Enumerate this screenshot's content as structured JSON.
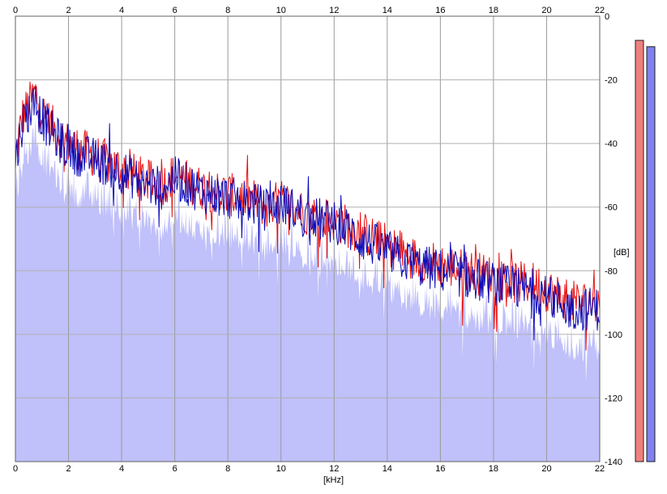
{
  "chart_data": {
    "type": "area",
    "xlabel": "[kHz]",
    "ylabel": "[dB]",
    "xlim": [
      0,
      22
    ],
    "ylim": [
      -140,
      0
    ],
    "x_ticks": [
      "0",
      "2",
      "4",
      "6",
      "8",
      "10",
      "12",
      "14",
      "16",
      "18",
      "20",
      "22"
    ],
    "y_ticks": [
      "0",
      "-20",
      "-40",
      "-60",
      "-80",
      "-100",
      "-120",
      "-140"
    ],
    "grid": true,
    "series": [
      {
        "color": "#e81010",
        "x": [
          0,
          0.25,
          0.5,
          0.75,
          1,
          1.5,
          2,
          2.5,
          3,
          3.5,
          4,
          4.5,
          5,
          5.5,
          6,
          6.5,
          7,
          7.5,
          8,
          8.5,
          9,
          9.5,
          10,
          10.5,
          11,
          11.5,
          12,
          12.5,
          13,
          13.5,
          14,
          14.5,
          15,
          15.5,
          16,
          16.5,
          17,
          17.5,
          18,
          18.5,
          19,
          19.5,
          20,
          20.5,
          21,
          21.5,
          22
        ],
        "y": [
          -44,
          -32,
          -28,
          -24,
          -30,
          -36,
          -40,
          -42,
          -44,
          -46,
          -48,
          -50,
          -52,
          -53,
          -50,
          -52,
          -54,
          -55,
          -56,
          -57,
          -58,
          -60,
          -58,
          -60,
          -62,
          -63,
          -64,
          -66,
          -68,
          -70,
          -72,
          -74,
          -76,
          -77,
          -78,
          -79,
          -80,
          -81,
          -82,
          -83,
          -84,
          -84,
          -86,
          -88,
          -90,
          -90,
          -90
        ]
      },
      {
        "color": "#0a0ab8",
        "x": [
          0,
          0.25,
          0.5,
          0.75,
          1,
          1.5,
          2,
          2.5,
          3,
          3.5,
          4,
          4.5,
          5,
          5.5,
          6,
          6.5,
          7,
          7.5,
          8,
          8.5,
          9,
          9.5,
          10,
          10.5,
          11,
          11.5,
          12,
          12.5,
          13,
          13.5,
          14,
          14.5,
          15,
          15.5,
          16,
          16.5,
          17,
          17.5,
          18,
          18.5,
          19,
          19.5,
          20,
          20.5,
          21,
          21.5,
          22
        ],
        "y": [
          -46,
          -34,
          -30,
          -27,
          -32,
          -38,
          -42,
          -44,
          -45,
          -47,
          -49,
          -51,
          -53,
          -54,
          -51,
          -53,
          -55,
          -56,
          -57,
          -58,
          -59,
          -61,
          -59,
          -61,
          -63,
          -64,
          -65,
          -67,
          -70,
          -72,
          -74,
          -76,
          -78,
          -79,
          -80,
          -81,
          -82,
          -83,
          -84,
          -85,
          -86,
          -86,
          -88,
          -90,
          -92,
          -92,
          -92
        ]
      }
    ],
    "area_fill": "#c0c0fa",
    "meters": [
      {
        "color": "#f08080",
        "value": -2
      },
      {
        "color": "#8080f0",
        "value": -4
      }
    ]
  }
}
